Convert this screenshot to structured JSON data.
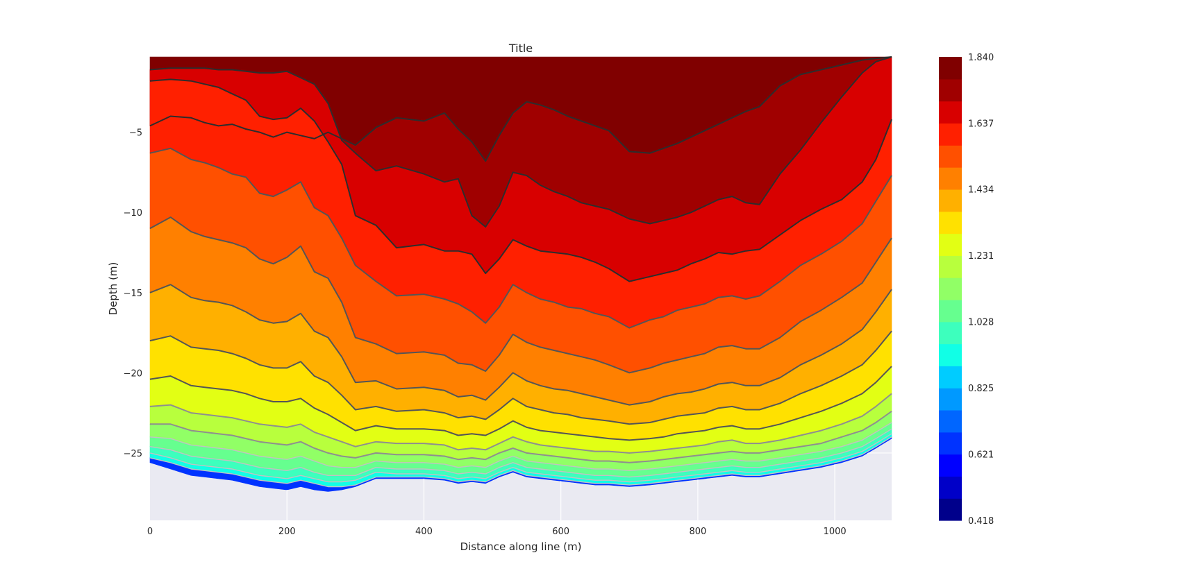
{
  "chart_data": {
    "type": "contourf",
    "title": "Title",
    "xlabel": "Distance along line (m)",
    "ylabel": "Depth (m)",
    "xlim": [
      0,
      1083
    ],
    "ylim": [
      -29.2,
      -0.3
    ],
    "x_ticks": [
      0,
      200,
      400,
      600,
      800,
      1000
    ],
    "y_ticks": [
      -5,
      -10,
      -15,
      -20,
      -25
    ],
    "grid": true,
    "background": "#eaeaf2",
    "colorbar": {
      "position": "right",
      "min": 0.418,
      "max": 1.84,
      "tick_labels": [
        "1.840",
        "1.637",
        "1.434",
        "1.231",
        "1.028",
        "0.825",
        "0.621",
        "0.418"
      ],
      "levels": 21,
      "colors": [
        "#00008b",
        "#0000c8",
        "#0000ff",
        "#0033ff",
        "#0066ff",
        "#0099ff",
        "#00ccff",
        "#11ffe6",
        "#3dffbd",
        "#66ff8f",
        "#91ff66",
        "#b8ff3d",
        "#e2ff14",
        "#ffe100",
        "#ffb000",
        "#ff8000",
        "#ff5000",
        "#ff2000",
        "#d80000",
        "#a00000",
        "#800000"
      ]
    },
    "x": [
      0,
      30,
      60,
      80,
      100,
      120,
      140,
      160,
      180,
      200,
      220,
      240,
      260,
      280,
      300,
      330,
      360,
      400,
      430,
      450,
      470,
      490,
      510,
      530,
      550,
      570,
      590,
      610,
      630,
      650,
      670,
      700,
      730,
      750,
      770,
      790,
      810,
      830,
      850,
      870,
      890,
      920,
      950,
      980,
      1010,
      1040,
      1060,
      1083
    ],
    "contour_depths": [
      [
        -4.6,
        -4.0,
        -4.1,
        -4.4,
        -4.6,
        -4.5,
        -4.8,
        -5.0,
        -5.3,
        -5.0,
        -5.2,
        -5.4,
        -5.0,
        -5.4,
        -5.8,
        -4.7,
        -4.1,
        -4.3,
        -3.8,
        -4.8,
        -5.6,
        -6.8,
        -5.2,
        -3.8,
        -3.1,
        -3.3,
        -3.6,
        -4.0,
        -4.3,
        -4.6,
        -4.9,
        -6.2,
        -6.3,
        -6.0,
        -5.7,
        -5.3,
        -4.9,
        -4.5,
        -4.1,
        -3.7,
        -3.4,
        -2.1,
        -1.4,
        -1.1,
        -0.8,
        -0.5,
        -0.4,
        -0.3
      ],
      [
        -1.1,
        -1.0,
        -1.0,
        -1.0,
        -1.1,
        -1.1,
        -1.2,
        -1.3,
        -1.3,
        -1.2,
        -1.6,
        -2.0,
        -3.2,
        -5.5,
        -6.3,
        -7.4,
        -7.1,
        -7.6,
        -8.1,
        -7.9,
        -10.2,
        -10.9,
        -9.6,
        -7.5,
        -7.7,
        -8.3,
        -8.7,
        -9.0,
        -9.4,
        -9.6,
        -9.8,
        -10.4,
        -10.7,
        -10.5,
        -10.3,
        -10.0,
        -9.6,
        -9.2,
        -9.0,
        -9.4,
        -9.5,
        -7.6,
        -6.1,
        -4.4,
        -2.8,
        -1.3,
        -0.6,
        -0.3
      ],
      [
        -1.8,
        -1.7,
        -1.8,
        -2.0,
        -2.2,
        -2.6,
        -3.0,
        -4.0,
        -4.2,
        -4.1,
        -3.5,
        -4.3,
        -5.6,
        -7.0,
        -10.2,
        -10.8,
        -12.2,
        -12.0,
        -12.4,
        -12.4,
        -12.6,
        -13.8,
        -12.9,
        -11.7,
        -12.1,
        -12.4,
        -12.5,
        -12.6,
        -12.8,
        -13.1,
        -13.5,
        -14.3,
        -14.0,
        -13.8,
        -13.6,
        -13.2,
        -12.9,
        -12.5,
        -12.6,
        -12.4,
        -12.3,
        -11.4,
        -10.5,
        -9.8,
        -9.2,
        -8.1,
        -6.7,
        -4.2
      ],
      [
        -6.3,
        -6.0,
        -6.7,
        -6.9,
        -7.2,
        -7.6,
        -7.8,
        -8.8,
        -9.0,
        -8.6,
        -8.1,
        -9.7,
        -10.2,
        -11.6,
        -13.3,
        -14.3,
        -15.2,
        -15.1,
        -15.4,
        -15.7,
        -16.2,
        -16.9,
        -15.9,
        -14.5,
        -15.0,
        -15.4,
        -15.6,
        -15.9,
        -16.0,
        -16.3,
        -16.5,
        -17.2,
        -16.7,
        -16.5,
        -16.1,
        -15.9,
        -15.7,
        -15.3,
        -15.2,
        -15.4,
        -15.2,
        -14.3,
        -13.3,
        -12.6,
        -11.8,
        -10.7,
        -9.3,
        -7.7
      ],
      [
        -11.0,
        -10.3,
        -11.2,
        -11.5,
        -11.7,
        -11.9,
        -12.2,
        -12.9,
        -13.2,
        -12.8,
        -12.1,
        -13.7,
        -14.1,
        -15.6,
        -17.8,
        -18.2,
        -18.8,
        -18.7,
        -18.9,
        -19.4,
        -19.5,
        -19.9,
        -18.9,
        -17.6,
        -18.1,
        -18.4,
        -18.6,
        -18.8,
        -19.0,
        -19.2,
        -19.5,
        -20.0,
        -19.7,
        -19.4,
        -19.2,
        -19.0,
        -18.8,
        -18.4,
        -18.3,
        -18.5,
        -18.5,
        -17.8,
        -16.8,
        -16.1,
        -15.3,
        -14.4,
        -13.1,
        -11.6
      ],
      [
        -15.0,
        -14.5,
        -15.3,
        -15.5,
        -15.6,
        -15.8,
        -16.2,
        -16.7,
        -16.9,
        -16.8,
        -16.3,
        -17.4,
        -17.8,
        -19.0,
        -20.6,
        -20.5,
        -21.0,
        -20.9,
        -21.1,
        -21.5,
        -21.4,
        -21.7,
        -20.9,
        -20.0,
        -20.5,
        -20.8,
        -21.0,
        -21.1,
        -21.3,
        -21.5,
        -21.7,
        -22.0,
        -21.8,
        -21.5,
        -21.3,
        -21.2,
        -21.0,
        -20.7,
        -20.6,
        -20.8,
        -20.8,
        -20.3,
        -19.5,
        -18.9,
        -18.2,
        -17.3,
        -16.2,
        -14.8
      ],
      [
        -18.0,
        -17.7,
        -18.4,
        -18.5,
        -18.6,
        -18.8,
        -19.1,
        -19.5,
        -19.7,
        -19.7,
        -19.3,
        -20.2,
        -20.6,
        -21.4,
        -22.3,
        -22.1,
        -22.4,
        -22.3,
        -22.5,
        -22.8,
        -22.7,
        -22.9,
        -22.3,
        -21.6,
        -22.1,
        -22.3,
        -22.5,
        -22.6,
        -22.8,
        -22.9,
        -23.0,
        -23.2,
        -23.1,
        -22.9,
        -22.7,
        -22.6,
        -22.5,
        -22.2,
        -22.1,
        -22.3,
        -22.3,
        -21.9,
        -21.3,
        -20.8,
        -20.2,
        -19.5,
        -18.6,
        -17.4
      ],
      [
        -20.4,
        -20.2,
        -20.8,
        -20.9,
        -21.0,
        -21.1,
        -21.3,
        -21.6,
        -21.8,
        -21.8,
        -21.6,
        -22.2,
        -22.6,
        -23.1,
        -23.6,
        -23.3,
        -23.5,
        -23.5,
        -23.6,
        -23.9,
        -23.8,
        -23.9,
        -23.5,
        -23.0,
        -23.4,
        -23.6,
        -23.7,
        -23.8,
        -23.9,
        -24.0,
        -24.1,
        -24.2,
        -24.1,
        -24.0,
        -23.8,
        -23.7,
        -23.6,
        -23.4,
        -23.3,
        -23.5,
        -23.5,
        -23.2,
        -22.8,
        -22.4,
        -21.9,
        -21.3,
        -20.6,
        -19.6
      ],
      [
        -22.1,
        -22.0,
        -22.5,
        -22.6,
        -22.7,
        -22.8,
        -23.0,
        -23.2,
        -23.3,
        -23.4,
        -23.2,
        -23.7,
        -24.0,
        -24.3,
        -24.6,
        -24.3,
        -24.4,
        -24.4,
        -24.5,
        -24.8,
        -24.7,
        -24.8,
        -24.4,
        -24.0,
        -24.3,
        -24.5,
        -24.6,
        -24.7,
        -24.8,
        -24.9,
        -24.9,
        -25.0,
        -24.9,
        -24.8,
        -24.7,
        -24.6,
        -24.5,
        -24.3,
        -24.2,
        -24.4,
        -24.4,
        -24.2,
        -23.9,
        -23.6,
        -23.2,
        -22.7,
        -22.1,
        -21.3
      ],
      [
        -23.2,
        -23.2,
        -23.6,
        -23.7,
        -23.8,
        -23.9,
        -24.1,
        -24.3,
        -24.4,
        -24.5,
        -24.3,
        -24.7,
        -25.0,
        -25.2,
        -25.3,
        -25.0,
        -25.1,
        -25.1,
        -25.2,
        -25.4,
        -25.3,
        -25.4,
        -25.0,
        -24.7,
        -25.0,
        -25.1,
        -25.2,
        -25.3,
        -25.4,
        -25.5,
        -25.5,
        -25.6,
        -25.5,
        -25.4,
        -25.3,
        -25.2,
        -25.1,
        -25.0,
        -24.9,
        -25.0,
        -25.0,
        -24.8,
        -24.6,
        -24.4,
        -24.0,
        -23.6,
        -23.1,
        -22.4
      ],
      [
        -24.0,
        -24.1,
        -24.5,
        -24.6,
        -24.7,
        -24.8,
        -25.0,
        -25.2,
        -25.3,
        -25.4,
        -25.2,
        -25.5,
        -25.8,
        -25.9,
        -25.9,
        -25.5,
        -25.6,
        -25.6,
        -25.7,
        -25.9,
        -25.8,
        -25.9,
        -25.5,
        -25.2,
        -25.5,
        -25.6,
        -25.7,
        -25.8,
        -25.9,
        -26.0,
        -26.0,
        -26.1,
        -26.0,
        -25.9,
        -25.8,
        -25.7,
        -25.6,
        -25.5,
        -25.4,
        -25.5,
        -25.5,
        -25.3,
        -25.1,
        -24.9,
        -24.6,
        -24.2,
        -23.7,
        -23.1
      ],
      [
        -24.6,
        -24.8,
        -25.2,
        -25.3,
        -25.4,
        -25.5,
        -25.7,
        -25.9,
        -26.0,
        -26.1,
        -25.9,
        -26.2,
        -26.4,
        -26.4,
        -26.4,
        -25.9,
        -26.0,
        -26.0,
        -26.1,
        -26.3,
        -26.2,
        -26.3,
        -25.9,
        -25.6,
        -25.9,
        -26.0,
        -26.1,
        -26.2,
        -26.3,
        -26.4,
        -26.4,
        -26.5,
        -26.4,
        -26.3,
        -26.2,
        -26.1,
        -26.0,
        -25.9,
        -25.8,
        -25.9,
        -25.9,
        -25.7,
        -25.5,
        -25.3,
        -25.0,
        -24.6,
        -24.1,
        -23.5
      ],
      [
        -25.0,
        -25.3,
        -25.7,
        -25.8,
        -25.9,
        -26.0,
        -26.2,
        -26.4,
        -26.5,
        -26.6,
        -26.4,
        -26.6,
        -26.8,
        -26.8,
        -26.7,
        -26.2,
        -26.3,
        -26.3,
        -26.4,
        -26.6,
        -26.5,
        -26.6,
        -26.2,
        -25.9,
        -26.2,
        -26.3,
        -26.4,
        -26.5,
        -26.6,
        -26.7,
        -26.7,
        -26.8,
        -26.7,
        -26.6,
        -26.5,
        -26.4,
        -26.3,
        -26.2,
        -26.1,
        -26.2,
        -26.2,
        -26.0,
        -25.8,
        -25.6,
        -25.3,
        -24.9,
        -24.4,
        -23.8
      ],
      [
        -25.3,
        -25.6,
        -26.0,
        -26.1,
        -26.2,
        -26.3,
        -26.5,
        -26.7,
        -26.8,
        -26.9,
        -26.7,
        -26.9,
        -27.1,
        -27.1,
        -27.0,
        -26.5,
        -26.5,
        -26.5,
        -26.6,
        -26.8,
        -26.7,
        -26.8,
        -26.4,
        -26.1,
        -26.4,
        -26.5,
        -26.6,
        -26.7,
        -26.8,
        -26.9,
        -26.9,
        -27.0,
        -26.9,
        -26.8,
        -26.7,
        -26.6,
        -26.5,
        -26.4,
        -26.3,
        -26.4,
        -26.4,
        -26.2,
        -26.0,
        -25.8,
        -25.5,
        -25.1,
        -24.6,
        -24.0
      ]
    ],
    "bottom_depths": [
      -25.6,
      -26.0,
      -26.4,
      -26.5,
      -26.6,
      -26.7,
      -26.9,
      -27.1,
      -27.2,
      -27.3,
      -27.1,
      -27.3,
      -27.4,
      -27.3,
      -27.1,
      -26.6,
      -26.6,
      -26.6,
      -26.7,
      -26.9,
      -26.8,
      -26.9,
      -26.5,
      -26.2,
      -26.5,
      -26.6,
      -26.7,
      -26.8,
      -26.9,
      -27.0,
      -27.0,
      -27.1,
      -27.0,
      -26.9,
      -26.8,
      -26.7,
      -26.6,
      -26.5,
      -26.4,
      -26.5,
      -26.5,
      -26.3,
      -26.1,
      -25.9,
      -25.6,
      -25.2,
      -24.7,
      -24.1
    ]
  }
}
